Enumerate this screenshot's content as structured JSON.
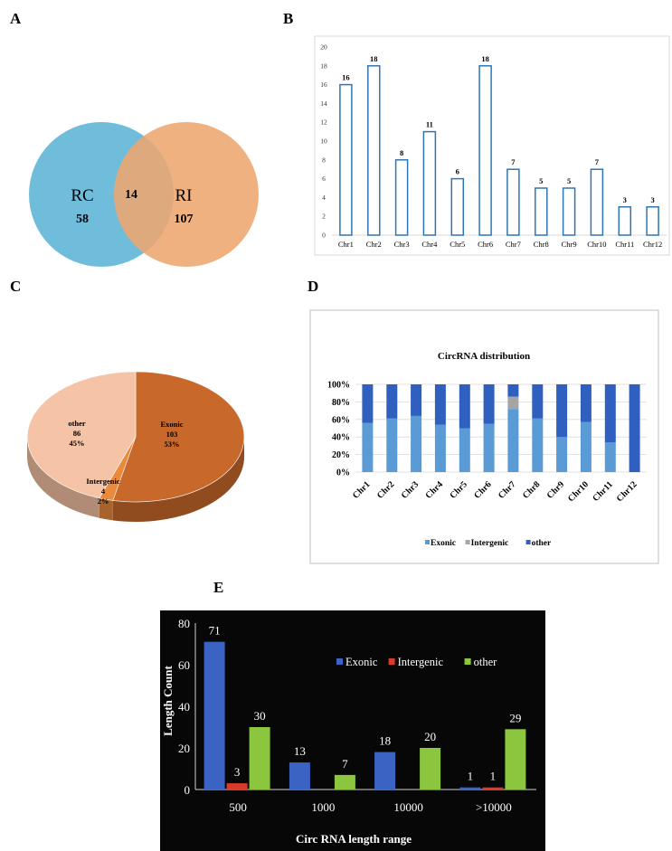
{
  "panels": {
    "A": "A",
    "B": "B",
    "C": "C",
    "D": "D",
    "E": "E"
  },
  "venn": {
    "left_label": "RC",
    "left_count": "58",
    "right_label": "RI",
    "right_count": "107",
    "overlap_count": "14",
    "left_color": "#5bb3d6",
    "right_color": "#eea66f"
  },
  "chart_data": [
    {
      "type": "bar",
      "panel": "B",
      "categories": [
        "Chr1",
        "Chr2",
        "Chr3",
        "Chr4",
        "Chr5",
        "Chr6",
        "Chr7",
        "Chr8",
        "Chr9",
        "Chr10",
        "Chr11",
        "Chr12"
      ],
      "values": [
        16,
        18,
        8,
        11,
        6,
        18,
        7,
        5,
        5,
        7,
        3,
        3
      ],
      "value_labels": [
        "16",
        "18",
        "8",
        "11",
        "6",
        "18",
        "7",
        "5",
        "5",
        "7",
        "3",
        "3"
      ],
      "yticks": [
        "0",
        "2",
        "4",
        "6",
        "8",
        "10",
        "12",
        "14",
        "16",
        "18",
        "20"
      ],
      "ylim": [
        0,
        20
      ],
      "bar_style": "outline",
      "bar_color": "#2e75b6"
    },
    {
      "type": "pie",
      "panel": "C",
      "slices": [
        {
          "name": "Exonic",
          "value": 103,
          "percent": "53%",
          "count_label": "103",
          "color": "#c8682a"
        },
        {
          "name": "Intergenic",
          "value": 4,
          "percent": "2%",
          "count_label": "4",
          "color": "#e98a3d"
        },
        {
          "name": "other",
          "value": 86,
          "percent": "45%",
          "count_label": "86",
          "color": "#f5c3a5"
        }
      ]
    },
    {
      "type": "bar",
      "panel": "D",
      "stacked": "percent",
      "title": "CircRNA distribution",
      "categories": [
        "Chr1",
        "Chr2",
        "Chr3",
        "Chr4",
        "Chr5",
        "Chr6",
        "Chr7",
        "Chr8",
        "Chr9",
        "Chr10",
        "Chr11",
        "Chr12"
      ],
      "series": [
        {
          "name": "Exonic",
          "color": "#5b9bd5",
          "values": [
            56,
            61,
            64,
            54,
            50,
            55,
            72,
            61,
            40,
            57,
            34,
            0
          ]
        },
        {
          "name": "Intergenic",
          "color": "#a5a5a5",
          "values": [
            0,
            0,
            0,
            0,
            0,
            0,
            14,
            0,
            0,
            0,
            0,
            0
          ]
        },
        {
          "name": "other",
          "color": "#2f5fbf",
          "values": [
            44,
            39,
            36,
            46,
            50,
            45,
            14,
            39,
            60,
            43,
            66,
            100
          ]
        }
      ],
      "yticks": [
        "0%",
        "20%",
        "40%",
        "60%",
        "80%",
        "100%"
      ],
      "ylim": [
        0,
        100
      ],
      "legend_position": "bottom"
    },
    {
      "type": "bar",
      "panel": "E",
      "xlabel": "Circ RNA length range",
      "ylabel": "Length Count",
      "categories": [
        "500",
        "1000",
        "10000",
        ">10000"
      ],
      "series": [
        {
          "name": "Exonic",
          "color": "#3a63c4",
          "values": [
            71,
            13,
            18,
            1
          ],
          "labels": [
            "71",
            "13",
            "18",
            "1"
          ]
        },
        {
          "name": "Intergenic",
          "color": "#d83b2b",
          "values": [
            3,
            null,
            null,
            1
          ],
          "labels": [
            "3",
            "",
            "",
            "1"
          ]
        },
        {
          "name": "other",
          "color": "#8cc63f",
          "values": [
            30,
            7,
            20,
            29
          ],
          "labels": [
            "30",
            "7",
            "20",
            "29"
          ]
        }
      ],
      "yticks": [
        "0",
        "20",
        "40",
        "60",
        "80"
      ],
      "ylim": [
        0,
        80
      ],
      "background": "#070707",
      "legend_position": "top-right"
    }
  ]
}
